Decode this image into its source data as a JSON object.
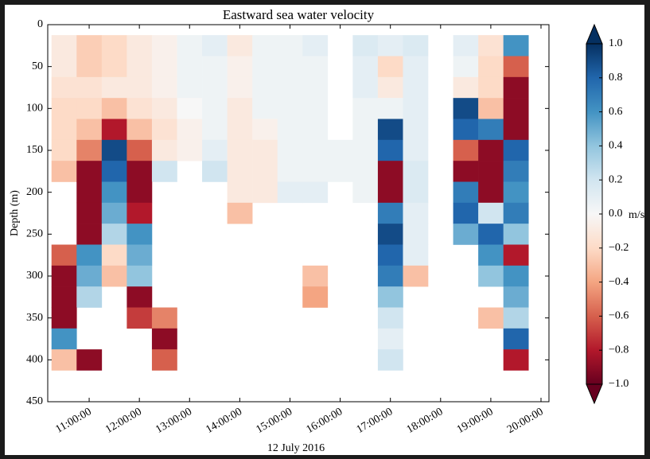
{
  "chart_data": {
    "type": "heatmap",
    "title": "Eastward sea water velocity",
    "xlabel": "12 July 2016",
    "ylabel": "Depth (m)",
    "colorbar_label": "m/s",
    "xlim": [
      "10:10:30",
      "20:09:30"
    ],
    "xticks": [
      "11:00:00",
      "12:00:00",
      "13:00:00",
      "14:00:00",
      "15:00:00",
      "16:00:00",
      "17:00:00",
      "18:00:00",
      "19:00:00",
      "20:00:00"
    ],
    "ylim": [
      0,
      450
    ],
    "y_inverted": true,
    "yticks": [
      0,
      50,
      100,
      150,
      200,
      250,
      300,
      350,
      400,
      450
    ],
    "x_edges": [
      "10:15:00",
      "10:45:00",
      "11:15:00",
      "11:45:00",
      "12:15:00",
      "12:45:00",
      "13:15:00",
      "13:45:00",
      "14:15:00",
      "14:45:00",
      "15:15:00",
      "15:45:00",
      "16:15:00",
      "16:45:00",
      "17:15:00",
      "17:45:00",
      "18:15:00",
      "18:45:00",
      "19:15:00",
      "19:45:00"
    ],
    "y_edges": [
      12.5,
      37.5,
      62.5,
      87.5,
      112.5,
      137.5,
      162.5,
      187.5,
      212.5,
      237.5,
      262.5,
      287.5,
      312.5,
      337.5,
      362.5,
      387.5,
      412.5
    ],
    "clim": [
      -1,
      1
    ],
    "colorbar_extend": "both",
    "colormap": [
      "#67001f",
      "#b2182b",
      "#d6604d",
      "#f4a582",
      "#fddbc7",
      "#f7f7f7",
      "#d1e5f0",
      "#92c5de",
      "#4393c3",
      "#2166ac",
      "#053061"
    ],
    "cticks": [
      {
        "value": 1,
        "label": "1.0"
      },
      {
        "value": 0.8,
        "label": "0.8"
      },
      {
        "value": 0.6,
        "label": "0.6"
      },
      {
        "value": 0.4,
        "label": "0.4"
      },
      {
        "value": 0.2,
        "label": "0.2"
      },
      {
        "value": 0,
        "label": "0.0"
      },
      {
        "value": -0.2,
        "label": "−0.2"
      },
      {
        "value": -0.4,
        "label": "−0.4"
      },
      {
        "value": -0.6,
        "label": "−0.6"
      },
      {
        "value": -0.8,
        "label": "−0.8"
      },
      {
        "value": -1,
        "label": "−1.0"
      }
    ],
    "values": [
      [
        -0.1,
        -0.25,
        -0.2,
        -0.1,
        -0.05,
        0.05,
        0.1,
        -0.1,
        0.05,
        0.05,
        0.1,
        null,
        0.15,
        0.1,
        0.15,
        null,
        0.1,
        -0.15,
        0.6
      ],
      [
        -0.1,
        -0.25,
        -0.2,
        -0.1,
        -0.05,
        0.05,
        0.05,
        -0.05,
        0.05,
        0.05,
        0.05,
        null,
        0.1,
        -0.2,
        0.1,
        null,
        0.05,
        -0.2,
        -0.6
      ],
      [
        -0.15,
        -0.15,
        -0.1,
        -0.1,
        -0.05,
        0.05,
        0.05,
        -0.05,
        0.05,
        0.05,
        0.05,
        null,
        0.1,
        -0.1,
        0.1,
        null,
        -0.1,
        -0.2,
        -0.9
      ],
      [
        -0.2,
        -0.2,
        -0.3,
        -0.15,
        -0.1,
        0.0,
        0.05,
        -0.1,
        0.05,
        0.05,
        0.05,
        null,
        0.05,
        0.05,
        0.1,
        null,
        0.9,
        -0.3,
        -0.9
      ],
      [
        -0.2,
        -0.3,
        -0.8,
        -0.3,
        -0.15,
        -0.05,
        0.05,
        -0.1,
        -0.05,
        0.05,
        0.05,
        null,
        0.05,
        0.9,
        0.1,
        null,
        0.8,
        0.7,
        -0.9
      ],
      [
        -0.2,
        -0.5,
        0.9,
        -0.6,
        -0.1,
        -0.05,
        0.1,
        -0.1,
        -0.1,
        0.05,
        0.05,
        0.05,
        0.05,
        0.8,
        0.1,
        null,
        -0.6,
        -0.9,
        0.8
      ],
      [
        -0.3,
        -0.9,
        0.8,
        -0.9,
        0.2,
        null,
        0.2,
        -0.1,
        -0.1,
        0.05,
        0.05,
        0.05,
        0.05,
        -0.9,
        0.15,
        null,
        -0.9,
        -0.9,
        0.7
      ],
      [
        null,
        -0.9,
        0.6,
        -0.9,
        null,
        null,
        null,
        -0.1,
        -0.1,
        0.1,
        0.1,
        null,
        0.05,
        -0.9,
        0.15,
        null,
        0.7,
        -0.9,
        0.6
      ],
      [
        null,
        -0.9,
        0.5,
        -0.8,
        null,
        null,
        null,
        -0.3,
        null,
        null,
        null,
        null,
        null,
        0.7,
        0.1,
        null,
        0.8,
        0.2,
        0.7
      ],
      [
        null,
        -0.9,
        0.3,
        0.6,
        null,
        null,
        null,
        null,
        null,
        null,
        null,
        null,
        null,
        0.9,
        0.1,
        null,
        0.5,
        0.8,
        0.4
      ],
      [
        -0.6,
        0.6,
        -0.2,
        0.5,
        null,
        null,
        null,
        null,
        null,
        null,
        null,
        null,
        null,
        0.8,
        0.1,
        null,
        null,
        0.6,
        -0.8
      ],
      [
        -0.9,
        0.5,
        -0.3,
        0.4,
        null,
        null,
        null,
        null,
        null,
        null,
        -0.3,
        null,
        null,
        0.7,
        -0.3,
        null,
        null,
        0.4,
        0.6
      ],
      [
        -0.9,
        0.3,
        null,
        -0.9,
        null,
        null,
        null,
        null,
        null,
        null,
        -0.4,
        null,
        null,
        0.4,
        null,
        null,
        null,
        null,
        0.5
      ],
      [
        -0.9,
        null,
        null,
        -0.7,
        -0.5,
        null,
        null,
        null,
        null,
        null,
        null,
        null,
        null,
        0.2,
        null,
        null,
        null,
        -0.3,
        0.3
      ],
      [
        0.6,
        null,
        null,
        null,
        -0.9,
        null,
        null,
        null,
        null,
        null,
        null,
        null,
        null,
        0.1,
        null,
        null,
        null,
        null,
        0.8
      ],
      [
        -0.3,
        -0.9,
        null,
        null,
        -0.6,
        null,
        null,
        null,
        null,
        null,
        null,
        null,
        null,
        0.2,
        null,
        null,
        null,
        null,
        -0.8
      ]
    ]
  }
}
